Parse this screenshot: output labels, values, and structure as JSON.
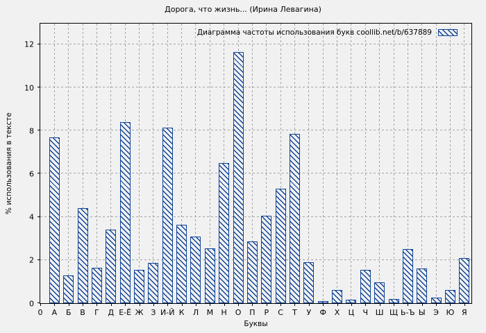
{
  "colors": {
    "bar": "#0e4397",
    "grid": "#a3a3a3",
    "axis": "#000000",
    "background": "#f1f1f1"
  },
  "chart_data": {
    "type": "bar",
    "title": "Дорога, что жизнь... (Ирина Левагина)",
    "legend_label": "Диаграмма частоты использования букв coollib.net/b/637889",
    "legend_position": "top-right",
    "xlabel": "Буквы",
    "ylabel": "% использования в тексте",
    "x_origin_label": "0",
    "yticks": [
      0,
      2,
      4,
      6,
      8,
      10,
      12
    ],
    "ylim": [
      0,
      12.96
    ],
    "grid": true,
    "bar_style": "hatched",
    "categories": [
      "А",
      "Б",
      "В",
      "Г",
      "Д",
      "Е-Ё",
      "Ж",
      "З",
      "И-Й",
      "К",
      "Л",
      "М",
      "Н",
      "О",
      "П",
      "Р",
      "С",
      "Т",
      "У",
      "Ф",
      "Х",
      "Ц",
      "Ч",
      "Ш",
      "Щ",
      "Ь-Ъ",
      "Ы",
      "Э",
      "Ю",
      "Я"
    ],
    "values": [
      7.7,
      1.3,
      4.4,
      1.65,
      3.4,
      8.4,
      1.55,
      1.85,
      8.15,
      3.65,
      3.1,
      2.55,
      6.5,
      11.65,
      2.85,
      4.05,
      5.3,
      7.85,
      1.9,
      0.1,
      0.6,
      0.15,
      1.55,
      0.95,
      0.2,
      2.5,
      1.6,
      0.25,
      0.6,
      2.1
    ]
  }
}
